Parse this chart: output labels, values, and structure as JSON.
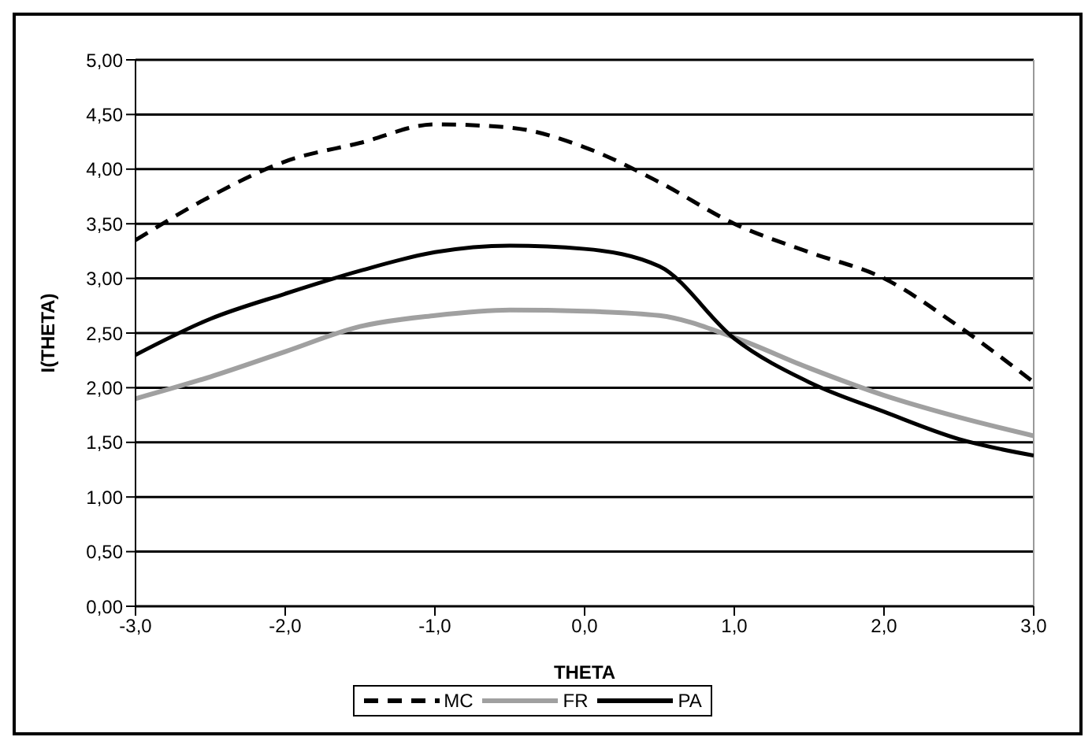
{
  "chart_data": {
    "type": "line",
    "xlabel": "THETA",
    "ylabel": "I(THETA)",
    "x": [
      -3,
      -2.5,
      -2,
      -1.5,
      -1,
      -0.5,
      0,
      0.5,
      1,
      1.5,
      2,
      2.5,
      3
    ],
    "series": [
      {
        "name": "MC",
        "color": "#000000",
        "line_style": "dashed",
        "values": [
          3.35,
          3.75,
          4.07,
          4.24,
          4.41,
          4.38,
          4.2,
          3.88,
          3.5,
          3.24,
          3.0,
          2.56,
          2.05
        ]
      },
      {
        "name": "FR",
        "color": "#a0a0a0",
        "line_style": "solid",
        "values": [
          1.9,
          2.1,
          2.33,
          2.56,
          2.66,
          2.71,
          2.7,
          2.66,
          2.46,
          2.18,
          1.93,
          1.73,
          1.56
        ]
      },
      {
        "name": "PA",
        "color": "#000000",
        "line_style": "solid",
        "values": [
          2.3,
          2.63,
          2.86,
          3.07,
          3.24,
          3.3,
          3.27,
          3.11,
          2.45,
          2.05,
          1.78,
          1.53,
          1.38
        ]
      }
    ],
    "xlim": [
      -3,
      3
    ],
    "xticks": [
      {
        "value": -3,
        "label": "-3,0"
      },
      {
        "value": -2,
        "label": "-2,0"
      },
      {
        "value": -1,
        "label": "-1,0"
      },
      {
        "value": 0,
        "label": "0,0"
      },
      {
        "value": 1,
        "label": "1,0"
      },
      {
        "value": 2,
        "label": "2,0"
      },
      {
        "value": 3,
        "label": "3,0"
      }
    ],
    "ylim": [
      0,
      5
    ],
    "yticks": [
      {
        "value": 0,
        "label": "0,00"
      },
      {
        "value": 0.5,
        "label": "0,50"
      },
      {
        "value": 1,
        "label": "1,00"
      },
      {
        "value": 1.5,
        "label": "1,50"
      },
      {
        "value": 2,
        "label": "2,00"
      },
      {
        "value": 2.5,
        "label": "2,50"
      },
      {
        "value": 3,
        "label": "3,00"
      },
      {
        "value": 3.5,
        "label": "3,50"
      },
      {
        "value": 4,
        "label": "4,00"
      },
      {
        "value": 4.5,
        "label": "4,50"
      },
      {
        "value": 5,
        "label": "5,00"
      }
    ],
    "grid": "y",
    "legend": "bottom",
    "marker": "none"
  }
}
